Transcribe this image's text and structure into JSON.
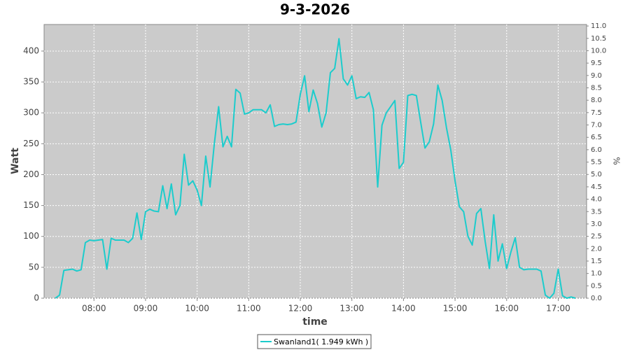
{
  "chart_data": {
    "type": "line",
    "title": "9-3-2026",
    "x_label": "time",
    "y_label": "Watt",
    "y2_label": "%",
    "x": [
      "07:15",
      "07:20",
      "07:25",
      "07:30",
      "07:35",
      "07:40",
      "07:45",
      "07:50",
      "07:55",
      "08:00",
      "08:05",
      "08:10",
      "08:15",
      "08:20",
      "08:25",
      "08:30",
      "08:35",
      "08:40",
      "08:45",
      "08:50",
      "08:55",
      "09:00",
      "09:05",
      "09:10",
      "09:15",
      "09:20",
      "09:25",
      "09:30",
      "09:35",
      "09:40",
      "09:45",
      "09:50",
      "09:55",
      "10:00",
      "10:05",
      "10:10",
      "10:15",
      "10:20",
      "10:25",
      "10:30",
      "10:35",
      "10:40",
      "10:45",
      "10:50",
      "10:55",
      "11:00",
      "11:05",
      "11:10",
      "11:15",
      "11:20",
      "11:25",
      "11:30",
      "11:35",
      "11:40",
      "11:45",
      "11:50",
      "11:55",
      "12:00",
      "12:05",
      "12:10",
      "12:15",
      "12:20",
      "12:25",
      "12:30",
      "12:35",
      "12:40",
      "12:45",
      "12:50",
      "12:55",
      "13:00",
      "13:05",
      "13:10",
      "13:15",
      "13:20",
      "13:25",
      "13:30",
      "13:35",
      "13:40",
      "13:45",
      "13:50",
      "13:55",
      "14:00",
      "14:05",
      "14:10",
      "14:15",
      "14:20",
      "14:25",
      "14:30",
      "14:35",
      "14:40",
      "14:45",
      "14:50",
      "14:55",
      "15:00",
      "15:05",
      "15:10",
      "15:15",
      "15:20",
      "15:25",
      "15:30",
      "15:35",
      "15:40",
      "15:45",
      "15:50",
      "15:55",
      "16:00",
      "16:05",
      "16:10",
      "16:15",
      "16:20",
      "16:25",
      "16:30",
      "16:35",
      "16:40",
      "16:45",
      "16:50",
      "16:55",
      "17:00",
      "17:05",
      "17:10",
      "17:15",
      "17:20"
    ],
    "series": [
      {
        "name": "Swanland1( 1.949 kWh )",
        "color": "#1ccccc",
        "values": [
          0,
          5,
          45,
          46,
          47,
          44,
          46,
          90,
          94,
          93,
          94,
          95,
          47,
          97,
          94,
          94,
          94,
          90,
          97,
          138,
          95,
          140,
          144,
          141,
          140,
          182,
          145,
          185,
          135,
          150,
          233,
          183,
          190,
          175,
          150,
          230,
          180,
          250,
          310,
          245,
          262,
          245,
          338,
          332,
          298,
          300,
          305,
          305,
          305,
          300,
          313,
          278,
          281,
          282,
          281,
          282,
          285,
          330,
          360,
          302,
          337,
          315,
          277,
          300,
          365,
          372,
          420,
          355,
          345,
          360,
          323,
          326,
          325,
          333,
          305,
          180,
          280,
          300,
          310,
          320,
          210,
          220,
          328,
          330,
          328,
          285,
          243,
          253,
          282,
          345,
          320,
          276,
          240,
          190,
          148,
          140,
          100,
          86,
          137,
          145,
          92,
          48,
          135,
          60,
          88,
          48,
          75,
          98,
          50,
          46,
          47,
          47,
          47,
          44,
          5,
          0,
          8,
          47,
          4,
          0,
          2,
          0
        ]
      }
    ],
    "xlim": [
      "07:02",
      "17:33"
    ],
    "xticks": [
      "08:00",
      "09:00",
      "10:00",
      "11:00",
      "12:00",
      "13:00",
      "14:00",
      "15:00",
      "16:00",
      "17:00"
    ],
    "ylim": [
      0,
      443
    ],
    "yticks": [
      0,
      50,
      100,
      150,
      200,
      250,
      300,
      350,
      400
    ],
    "y2lim": [
      0,
      11.06
    ],
    "y2ticks": [
      {
        "value": 0,
        "label": "0.0"
      },
      {
        "value": 0.5,
        "label": "0.5"
      },
      {
        "value": 1,
        "label": "1.0"
      },
      {
        "value": 1.5,
        "label": "1.5"
      },
      {
        "value": 2,
        "label": "2.0"
      },
      {
        "value": 2.5,
        "label": "2.5"
      },
      {
        "value": 3,
        "label": "3.0"
      },
      {
        "value": 3.5,
        "label": "3.5"
      },
      {
        "value": 4,
        "label": "4.0"
      },
      {
        "value": 4.5,
        "label": "4.5"
      },
      {
        "value": 5,
        "label": "5.0"
      },
      {
        "value": 5.5,
        "label": "5.5"
      },
      {
        "value": 6,
        "label": "6.0"
      },
      {
        "value": 6.5,
        "label": "6.5"
      },
      {
        "value": 7,
        "label": "7.0"
      },
      {
        "value": 7.5,
        "label": "7.5"
      },
      {
        "value": 8,
        "label": "8.0"
      },
      {
        "value": 8.5,
        "label": "8.5"
      },
      {
        "value": 9,
        "label": "9.0"
      },
      {
        "value": 9.5,
        "label": "9.5"
      },
      {
        "value": 10,
        "label": "10.0"
      },
      {
        "value": 10.5,
        "label": "10.5"
      },
      {
        "value": 11,
        "label": "11.0"
      }
    ],
    "grid": true
  }
}
